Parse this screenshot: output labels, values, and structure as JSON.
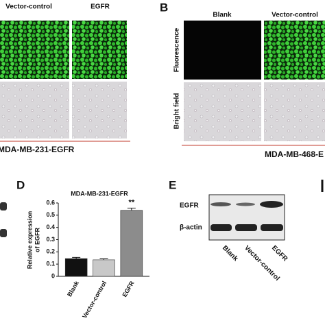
{
  "panel_a": {
    "columns": [
      "Vector-control",
      "EGFR"
    ],
    "caption": "MDA-MB-231-EGFR"
  },
  "panel_b": {
    "label": "B",
    "columns": [
      "Blank",
      "Vector-control"
    ],
    "rows": [
      "Fluorescence",
      "Bright field"
    ],
    "caption": "MDA-MB-468-E"
  },
  "panel_d": {
    "label": "D"
  },
  "chart_data": {
    "type": "bar",
    "title": "MDA-MB-231-EGFR",
    "y_label": [
      "Relative expression",
      "of EGFR"
    ],
    "categories": [
      "Blank",
      "Vector-control",
      "EGFR"
    ],
    "values": [
      0.145,
      0.135,
      0.54
    ],
    "errors": [
      0.01,
      0.008,
      0.018
    ],
    "colors": [
      "#111111",
      "#c8c8c8",
      "#8c8c8c"
    ],
    "significance": [
      null,
      null,
      "**"
    ],
    "ylim": [
      0,
      0.6
    ],
    "yticks": [
      0,
      0.1,
      0.2,
      0.3,
      0.4,
      0.5,
      0.6
    ]
  },
  "panel_e": {
    "label": "E",
    "rows": [
      "EGFR",
      "β-actin"
    ],
    "lanes": [
      "Blank",
      "Vector-control",
      "EGFR"
    ]
  }
}
